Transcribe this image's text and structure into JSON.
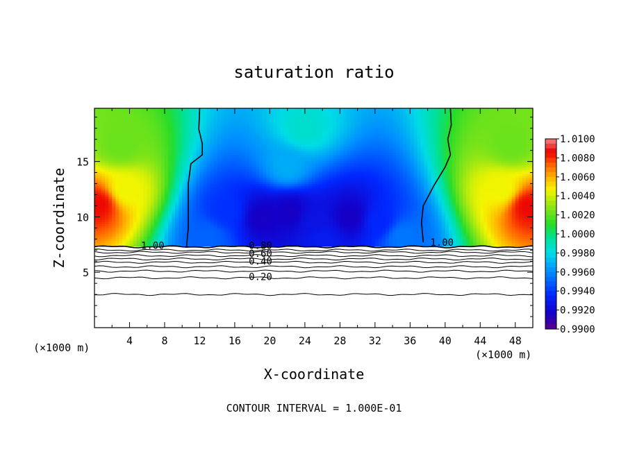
{
  "chart_data": {
    "type": "heatmap",
    "title": "saturation ratio",
    "xlabel": "X-coordinate",
    "ylabel": "Z-coordinate",
    "x_unit": "(×1000 m)",
    "z_unit": "(×1000 m)",
    "xlim": [
      0,
      50
    ],
    "ylim": [
      0,
      19.8
    ],
    "x_ticks": [
      4,
      8,
      12,
      16,
      20,
      24,
      28,
      32,
      36,
      40,
      44,
      48
    ],
    "y_ticks": [
      5,
      10,
      15
    ],
    "footer": "CONTOUR INTERVAL = 1.000E-01",
    "colorbar": {
      "min": 0.99,
      "max": 1.01,
      "labels": [
        "1.0100",
        "1.0080",
        "1.0060",
        "1.0040",
        "1.0020",
        "1.0000",
        "0.9980",
        "0.9960",
        "0.9940",
        "0.9920",
        "0.9900"
      ]
    },
    "contour_labels": [
      {
        "text": "1.00",
        "x": 5.3,
        "z": 7.1
      },
      {
        "text": "0.80",
        "x": 17.6,
        "z": 7.1
      },
      {
        "text": "0.60",
        "x": 17.6,
        "z": 6.4
      },
      {
        "text": "0.40",
        "x": 17.6,
        "z": 5.7
      },
      {
        "text": "0.20",
        "x": 17.6,
        "z": 4.3
      },
      {
        "text": "1.00",
        "x": 38.3,
        "z": 7.4
      }
    ],
    "contour_levels": [
      {
        "label": "1.00",
        "z": 7.3
      },
      {
        "label": "0.90",
        "z": 7.0
      },
      {
        "label": "0.80",
        "z": 6.8
      },
      {
        "label": "0.70",
        "z": 6.5
      },
      {
        "label": "0.60",
        "z": 6.2
      },
      {
        "label": "0.50",
        "z": 5.9
      },
      {
        "label": "0.40",
        "z": 5.5
      },
      {
        "label": "0.30",
        "z": 5.1
      },
      {
        "label": "0.20",
        "z": 4.5
      },
      {
        "label": "0.10",
        "z": 3.0
      }
    ],
    "boundary_lines": [
      {
        "label": "1.00",
        "points": [
          [
            10.5,
            7.3
          ],
          [
            10.7,
            9.0
          ],
          [
            10.7,
            11.0
          ],
          [
            10.7,
            13.0
          ],
          [
            11.0,
            14.8
          ],
          [
            12.3,
            15.6
          ],
          [
            12.3,
            16.6
          ],
          [
            11.9,
            17.9
          ],
          [
            12.0,
            19.8
          ]
        ]
      },
      {
        "label": "1.00",
        "points": [
          [
            37.5,
            7.7
          ],
          [
            37.3,
            9.5
          ],
          [
            37.5,
            11.0
          ],
          [
            38.7,
            12.8
          ],
          [
            40.0,
            14.5
          ],
          [
            40.6,
            15.6
          ],
          [
            40.3,
            17.0
          ],
          [
            40.7,
            18.3
          ],
          [
            40.6,
            19.8
          ]
        ]
      }
    ],
    "field_features": [
      {
        "name": "left_high",
        "x": 0.6,
        "z": 11.2,
        "value": 1.0085
      },
      {
        "name": "left_mid",
        "x": 3.5,
        "z": 12.5,
        "value": 1.0045
      },
      {
        "name": "left_upper",
        "x": 3.0,
        "z": 16.5,
        "value": 1.0022
      },
      {
        "name": "right_high",
        "x": 49.3,
        "z": 11.0,
        "value": 1.0085
      },
      {
        "name": "right_mid",
        "x": 46.5,
        "z": 12.5,
        "value": 1.0045
      },
      {
        "name": "right_upper",
        "x": 47.5,
        "z": 16.5,
        "value": 1.0022
      },
      {
        "name": "center_top",
        "x": 24.0,
        "z": 18.0,
        "value": 0.9985
      },
      {
        "name": "center_upper",
        "x": 22.0,
        "z": 14.5,
        "value": 0.9968
      },
      {
        "name": "dip_15",
        "x": 15.0,
        "z": 10.5,
        "value": 0.9938
      },
      {
        "name": "dip_19",
        "x": 19.2,
        "z": 10.0,
        "value": 0.9915
      },
      {
        "name": "dip_22",
        "x": 22.3,
        "z": 10.5,
        "value": 0.9915
      },
      {
        "name": "dip_25",
        "x": 25.0,
        "z": 9.7,
        "value": 0.9925
      },
      {
        "name": "dip_29",
        "x": 29.2,
        "z": 10.0,
        "value": 0.9915
      },
      {
        "name": "dip_32",
        "x": 32.5,
        "z": 9.5,
        "value": 0.9935
      },
      {
        "name": "base_center",
        "x": 26.0,
        "z": 8.0,
        "value": 0.993
      },
      {
        "name": "base_left",
        "x": 13.0,
        "z": 8.2,
        "value": 0.995
      },
      {
        "name": "base_right",
        "x": 35.0,
        "z": 8.2,
        "value": 0.9955
      }
    ]
  }
}
